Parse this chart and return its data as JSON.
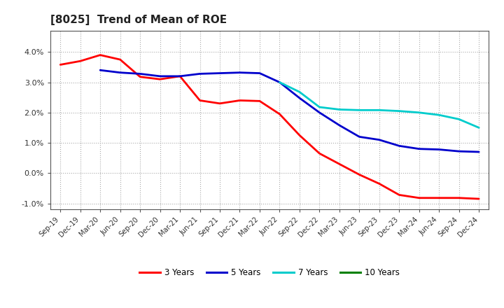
{
  "title": "[8025]  Trend of Mean of ROE",
  "title_fontsize": 11,
  "background_color": "#ffffff",
  "grid_color": "#aaaaaa",
  "ylim": [
    -0.012,
    0.047
  ],
  "yticks": [
    -0.01,
    0.0,
    0.01,
    0.02,
    0.03,
    0.04
  ],
  "series": {
    "3 Years": {
      "color": "#ff0000",
      "data": [
        [
          "Sep-19",
          0.0358
        ],
        [
          "Dec-19",
          0.037
        ],
        [
          "Mar-20",
          0.039
        ],
        [
          "Jun-20",
          0.0375
        ],
        [
          "Sep-20",
          0.0318
        ],
        [
          "Dec-20",
          0.031
        ],
        [
          "Mar-21",
          0.032
        ],
        [
          "Jun-21",
          0.024
        ],
        [
          "Sep-21",
          0.023
        ],
        [
          "Dec-21",
          0.024
        ],
        [
          "Mar-22",
          0.0238
        ],
        [
          "Jun-22",
          0.0195
        ],
        [
          "Sep-22",
          0.0125
        ],
        [
          "Dec-22",
          0.0065
        ],
        [
          "Mar-23",
          0.003
        ],
        [
          "Jun-23",
          -0.0005
        ],
        [
          "Sep-23",
          -0.0035
        ],
        [
          "Dec-23",
          -0.0072
        ],
        [
          "Mar-24",
          -0.0082
        ],
        [
          "Jun-24",
          -0.0082
        ],
        [
          "Sep-24",
          -0.0082
        ],
        [
          "Dec-24",
          -0.0085
        ]
      ]
    },
    "5 Years": {
      "color": "#0000cc",
      "data": [
        [
          "Sep-19",
          null
        ],
        [
          "Dec-19",
          null
        ],
        [
          "Mar-20",
          0.034
        ],
        [
          "Jun-20",
          0.0332
        ],
        [
          "Sep-20",
          0.0328
        ],
        [
          "Dec-20",
          0.032
        ],
        [
          "Mar-21",
          0.032
        ],
        [
          "Jun-21",
          0.0328
        ],
        [
          "Sep-21",
          0.033
        ],
        [
          "Dec-21",
          0.0332
        ],
        [
          "Mar-22",
          0.033
        ],
        [
          "Jun-22",
          0.03
        ],
        [
          "Sep-22",
          0.0248
        ],
        [
          "Dec-22",
          0.02
        ],
        [
          "Mar-23",
          0.0158
        ],
        [
          "Jun-23",
          0.012
        ],
        [
          "Sep-23",
          0.011
        ],
        [
          "Dec-23",
          0.009
        ],
        [
          "Mar-24",
          0.008
        ],
        [
          "Jun-24",
          0.0078
        ],
        [
          "Sep-24",
          0.0072
        ],
        [
          "Dec-24",
          0.007
        ]
      ]
    },
    "7 Years": {
      "color": "#00cccc",
      "data": [
        [
          "Sep-19",
          null
        ],
        [
          "Dec-19",
          null
        ],
        [
          "Mar-20",
          null
        ],
        [
          "Jun-20",
          null
        ],
        [
          "Sep-20",
          null
        ],
        [
          "Dec-20",
          null
        ],
        [
          "Mar-21",
          null
        ],
        [
          "Jun-21",
          null
        ],
        [
          "Sep-21",
          null
        ],
        [
          "Dec-21",
          null
        ],
        [
          "Mar-22",
          null
        ],
        [
          "Jun-22",
          0.03
        ],
        [
          "Sep-22",
          0.0268
        ],
        [
          "Dec-22",
          0.0218
        ],
        [
          "Mar-23",
          0.021
        ],
        [
          "Jun-23",
          0.0208
        ],
        [
          "Sep-23",
          0.0208
        ],
        [
          "Dec-23",
          0.0205
        ],
        [
          "Mar-24",
          0.02
        ],
        [
          "Jun-24",
          0.0192
        ],
        [
          "Sep-24",
          0.0178
        ],
        [
          "Dec-24",
          0.015
        ]
      ]
    },
    "10 Years": {
      "color": "#008000",
      "data": [
        [
          "Sep-19",
          null
        ],
        [
          "Dec-19",
          null
        ],
        [
          "Mar-20",
          null
        ],
        [
          "Jun-20",
          null
        ],
        [
          "Sep-20",
          null
        ],
        [
          "Dec-20",
          null
        ],
        [
          "Mar-21",
          null
        ],
        [
          "Jun-21",
          null
        ],
        [
          "Sep-21",
          null
        ],
        [
          "Dec-21",
          null
        ],
        [
          "Mar-22",
          null
        ],
        [
          "Jun-22",
          null
        ],
        [
          "Sep-22",
          null
        ],
        [
          "Dec-22",
          null
        ],
        [
          "Mar-23",
          null
        ],
        [
          "Jun-23",
          null
        ],
        [
          "Sep-23",
          null
        ],
        [
          "Dec-23",
          null
        ],
        [
          "Mar-24",
          null
        ],
        [
          "Jun-24",
          null
        ],
        [
          "Sep-24",
          null
        ],
        [
          "Dec-24",
          null
        ]
      ]
    }
  },
  "xtick_labels": [
    "Sep-19",
    "Dec-19",
    "Mar-20",
    "Jun-20",
    "Sep-20",
    "Dec-20",
    "Mar-21",
    "Jun-21",
    "Sep-21",
    "Dec-21",
    "Mar-22",
    "Jun-22",
    "Sep-22",
    "Dec-22",
    "Mar-23",
    "Jun-23",
    "Sep-23",
    "Dec-23",
    "Mar-24",
    "Jun-24",
    "Sep-24",
    "Dec-24"
  ],
  "legend_order": [
    "3 Years",
    "5 Years",
    "7 Years",
    "10 Years"
  ],
  "legend_colors": [
    "#ff0000",
    "#0000cc",
    "#00cccc",
    "#008000"
  ]
}
